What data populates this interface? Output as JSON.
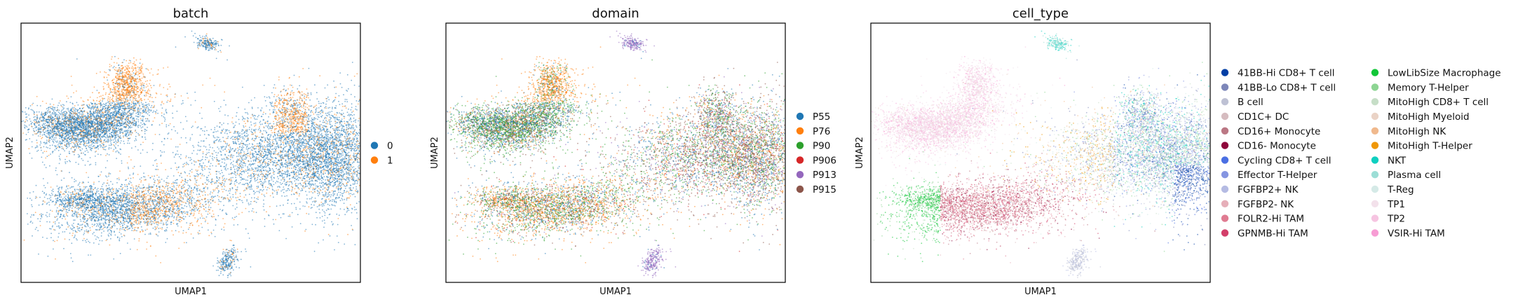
{
  "chart_data": [
    {
      "type": "scatter",
      "title": "batch",
      "xlabel": "UMAP1",
      "ylabel": "UMAP2",
      "grid": false,
      "legend_position": "right",
      "legend_columns": 1,
      "series": [
        {
          "name": "0",
          "color": "#1f77b4"
        },
        {
          "name": "1",
          "color": "#ff7f0e"
        }
      ]
    },
    {
      "type": "scatter",
      "title": "domain",
      "xlabel": "UMAP1",
      "ylabel": "UMAP2",
      "grid": false,
      "legend_position": "right",
      "legend_columns": 1,
      "series": [
        {
          "name": "P55",
          "color": "#1f77b4"
        },
        {
          "name": "P76",
          "color": "#ff7f0e"
        },
        {
          "name": "P90",
          "color": "#2ca02c"
        },
        {
          "name": "P906",
          "color": "#d62728"
        },
        {
          "name": "P913",
          "color": "#9467bd"
        },
        {
          "name": "P915",
          "color": "#8c564b"
        }
      ]
    },
    {
      "type": "scatter",
      "title": "cell_type",
      "xlabel": "UMAP1",
      "ylabel": "UMAP2",
      "grid": false,
      "legend_position": "right",
      "legend_columns": 2,
      "series": [
        {
          "name": "41BB-Hi CD8+ T cell",
          "color": "#023fa5"
        },
        {
          "name": "41BB-Lo CD8+ T cell",
          "color": "#7d87b9"
        },
        {
          "name": "B cell",
          "color": "#bec1d4"
        },
        {
          "name": "CD1C+ DC",
          "color": "#d6bcc0"
        },
        {
          "name": "CD16+ Monocyte",
          "color": "#bb7784"
        },
        {
          "name": "CD16- Monocyte",
          "color": "#8e063b"
        },
        {
          "name": "Cycling CD8+ T cell",
          "color": "#4a6fe3"
        },
        {
          "name": "Effector T-Helper",
          "color": "#8595e1"
        },
        {
          "name": "FGFBP2+ NK",
          "color": "#b5bbe3"
        },
        {
          "name": "FGFBP2- NK",
          "color": "#e6afb9"
        },
        {
          "name": "FOLR2-Hi TAM",
          "color": "#e07b91"
        },
        {
          "name": "GPNMB-Hi TAM",
          "color": "#d33f6a"
        },
        {
          "name": "LowLibSize Macrophage",
          "color": "#11c638"
        },
        {
          "name": "Memory T-Helper",
          "color": "#8dd593"
        },
        {
          "name": "MitoHigh CD8+ T cell",
          "color": "#c6dec7"
        },
        {
          "name": "MitoHigh Myeloid",
          "color": "#ead3c6"
        },
        {
          "name": "MitoHigh NK",
          "color": "#f0b98d"
        },
        {
          "name": "MitoHigh T-Helper",
          "color": "#ef9708"
        },
        {
          "name": "NKT",
          "color": "#0fcfc0"
        },
        {
          "name": "Plasma cell",
          "color": "#9cded6"
        },
        {
          "name": "T-Reg",
          "color": "#d5eae7"
        },
        {
          "name": "TP1",
          "color": "#f3e1eb"
        },
        {
          "name": "TP2",
          "color": "#f6c4e1"
        },
        {
          "name": "VSIR-Hi TAM",
          "color": "#f79cd4"
        }
      ]
    }
  ]
}
